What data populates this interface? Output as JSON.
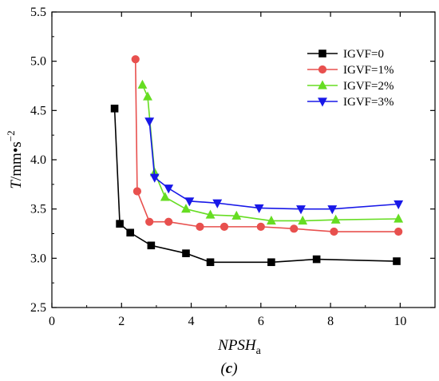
{
  "chart_data": {
    "type": "line",
    "panel_label": "c",
    "xlabel_main": "NPSH",
    "xlabel_sub": "a",
    "ylabel_main": "T",
    "ylabel_unit": "/mm•s",
    "ylabel_exp": "−2",
    "xlim": [
      0,
      11
    ],
    "ylim": [
      2.5,
      5.5
    ],
    "x_ticks": [
      0,
      2,
      4,
      6,
      8,
      10
    ],
    "y_ticks": [
      2.5,
      3.0,
      3.5,
      4.0,
      4.5,
      5.0,
      5.5
    ],
    "grid": false,
    "legend_position": "top-right",
    "series": [
      {
        "name": "IGVF=0",
        "color": "#000000",
        "marker": "square",
        "points": [
          [
            1.8,
            4.52
          ],
          [
            1.95,
            3.35
          ],
          [
            2.25,
            3.26
          ],
          [
            2.85,
            3.13
          ],
          [
            3.85,
            3.05
          ],
          [
            4.55,
            2.96
          ],
          [
            6.3,
            2.96
          ],
          [
            7.6,
            2.99
          ],
          [
            9.9,
            2.97
          ]
        ]
      },
      {
        "name": "IGVF=1%",
        "color": "#e8504e",
        "marker": "circle",
        "points": [
          [
            2.4,
            5.02
          ],
          [
            2.45,
            3.68
          ],
          [
            2.8,
            3.37
          ],
          [
            3.35,
            3.37
          ],
          [
            4.25,
            3.32
          ],
          [
            4.95,
            3.32
          ],
          [
            6.0,
            3.32
          ],
          [
            6.95,
            3.3
          ],
          [
            8.1,
            3.27
          ],
          [
            9.95,
            3.27
          ]
        ]
      },
      {
        "name": "IGVF=2%",
        "color": "#66dd22",
        "marker": "triangle-up",
        "points": [
          [
            2.6,
            4.76
          ],
          [
            2.75,
            4.64
          ],
          [
            2.95,
            3.87
          ],
          [
            3.25,
            3.62
          ],
          [
            3.85,
            3.5
          ],
          [
            4.55,
            3.44
          ],
          [
            5.3,
            3.43
          ],
          [
            6.3,
            3.38
          ],
          [
            7.2,
            3.38
          ],
          [
            8.15,
            3.39
          ],
          [
            9.95,
            3.4
          ]
        ]
      },
      {
        "name": "IGVF=3%",
        "color": "#1818e8",
        "marker": "triangle-down",
        "points": [
          [
            2.8,
            4.39
          ],
          [
            2.95,
            3.82
          ],
          [
            3.35,
            3.71
          ],
          [
            3.95,
            3.58
          ],
          [
            4.75,
            3.56
          ],
          [
            5.95,
            3.51
          ],
          [
            7.15,
            3.5
          ],
          [
            8.05,
            3.5
          ],
          [
            9.95,
            3.55
          ]
        ]
      }
    ]
  }
}
